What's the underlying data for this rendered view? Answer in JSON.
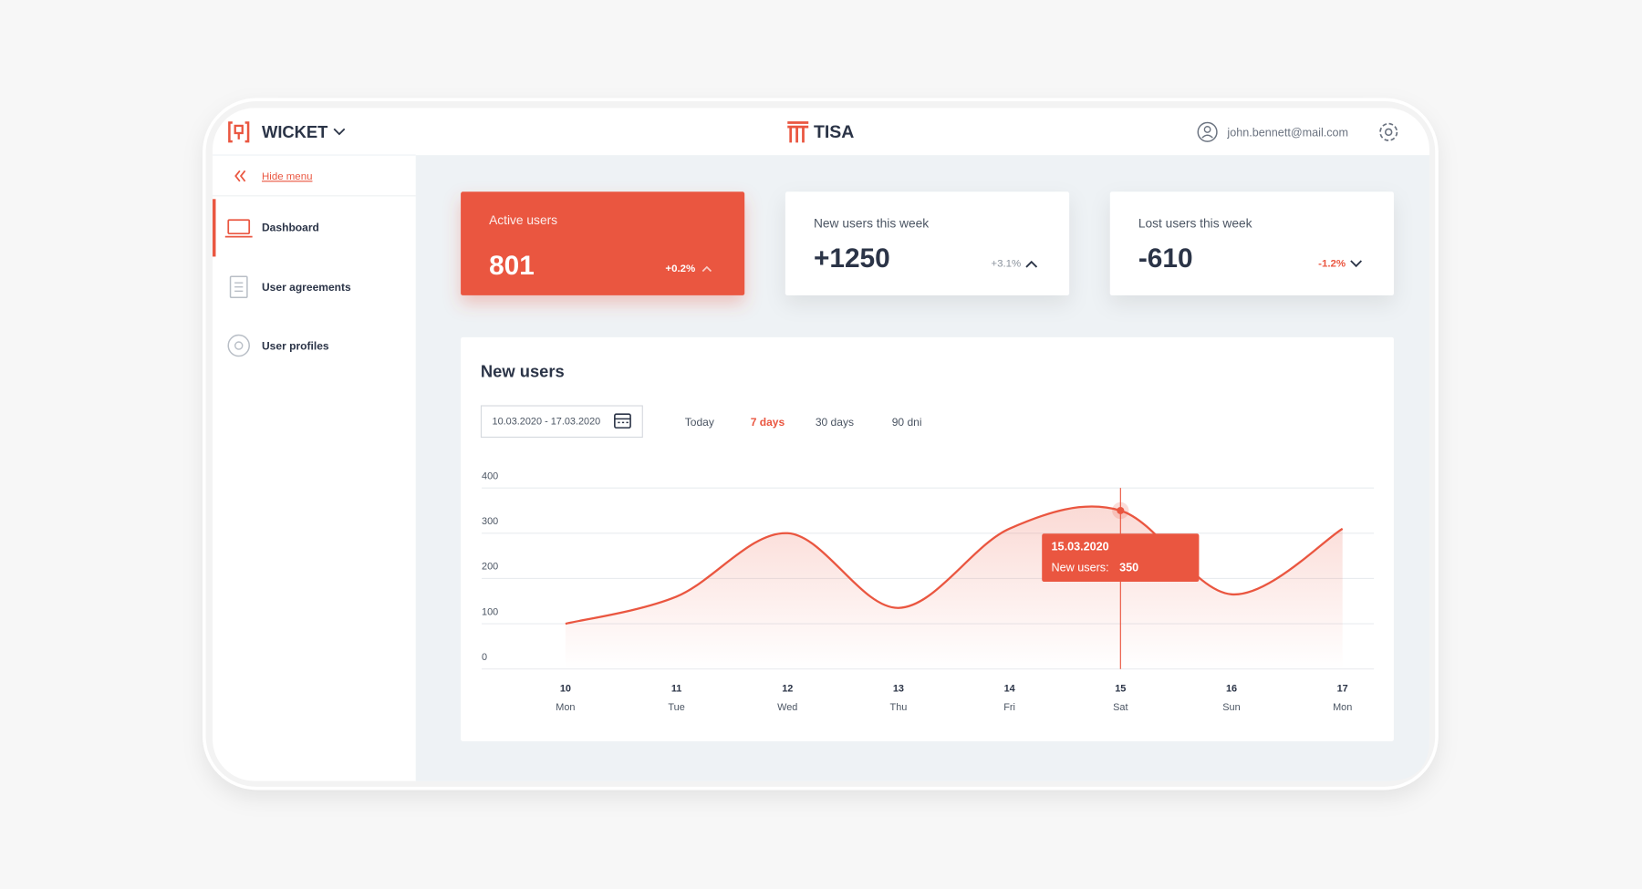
{
  "header": {
    "brand": "WICKET",
    "logo": "TISA",
    "user_email": "john.bennett@mail.com"
  },
  "sidebar": {
    "hide_menu": "Hide menu",
    "items": [
      "Dashboard",
      "User agreements",
      "User profiles"
    ]
  },
  "cards": [
    {
      "label": "Active users",
      "value": "801",
      "change": "+0.2%"
    },
    {
      "label": "New users this week",
      "value": "+1250",
      "change": "+3.1%"
    },
    {
      "label": "Lost users this week",
      "value": "-610",
      "change": "-1.2%"
    }
  ],
  "chart_data": {
    "type": "line",
    "title": "New users",
    "date_range": "10.03.2020 - 17.03.2020",
    "filters": [
      "Today",
      "7 days",
      "30 days",
      "90 dni"
    ],
    "active_filter": "7 days",
    "categories": [
      "10",
      "11",
      "12",
      "13",
      "14",
      "15",
      "16",
      "17"
    ],
    "weekdays": [
      "Mon",
      "Tue",
      "Wed",
      "Thu",
      "Fri",
      "Sat",
      "Sun",
      "Mon"
    ],
    "values": [
      100,
      160,
      300,
      135,
      310,
      350,
      165,
      310
    ],
    "color": "#ea5640",
    "ylim": [
      0,
      400
    ],
    "yticks": [
      0,
      100,
      200,
      300,
      400
    ],
    "grid": true,
    "tooltip": {
      "category": "15",
      "date": "15.03.2020",
      "label": "New users:"
    }
  }
}
